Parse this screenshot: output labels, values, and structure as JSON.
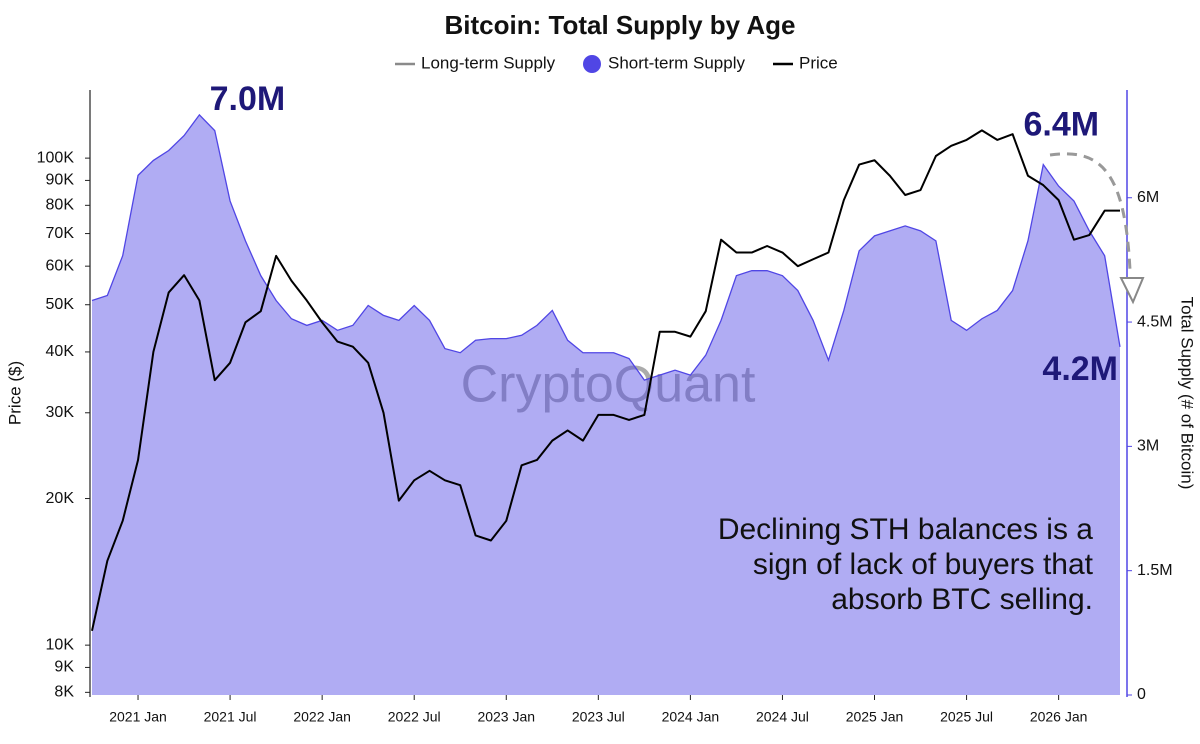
{
  "chart_data": {
    "type": "combo",
    "title": "Bitcoin: Total Supply by Age",
    "y_label": "Price ($)",
    "y2_label": "Total Supply (# of Bitcoin)",
    "watermark": "CryptoQuant",
    "x": [
      "2020-10",
      "2020-11",
      "2020-12",
      "2021-01",
      "2021-02",
      "2021-03",
      "2021-04",
      "2021-05",
      "2021-06",
      "2021-07",
      "2021-08",
      "2021-09",
      "2021-10",
      "2021-11",
      "2021-12",
      "2022-01",
      "2022-02",
      "2022-03",
      "2022-04",
      "2022-05",
      "2022-06",
      "2022-07",
      "2022-08",
      "2022-09",
      "2022-10",
      "2022-11",
      "2022-12",
      "2023-01",
      "2023-02",
      "2023-03",
      "2023-04",
      "2023-05",
      "2023-06",
      "2023-07",
      "2023-08",
      "2023-09",
      "2023-10",
      "2023-11",
      "2023-12",
      "2024-01",
      "2024-02",
      "2024-03",
      "2024-04",
      "2024-05",
      "2024-06",
      "2024-07",
      "2024-08",
      "2024-09",
      "2024-10",
      "2024-11",
      "2024-12",
      "2025-01",
      "2025-02",
      "2025-03",
      "2025-04",
      "2025-05",
      "2025-06",
      "2025-07",
      "2025-08",
      "2025-09",
      "2025-10",
      "2025-11",
      "2025-12",
      "2026-01",
      "2026-02",
      "2026-03",
      "2026-04",
      "2026-05"
    ],
    "xticks": [
      {
        "value": "2021-01",
        "label": "2021 Jan"
      },
      {
        "value": "2021-07",
        "label": "2021 Jul"
      },
      {
        "value": "2022-01",
        "label": "2022 Jan"
      },
      {
        "value": "2022-07",
        "label": "2022 Jul"
      },
      {
        "value": "2023-01",
        "label": "2023 Jan"
      },
      {
        "value": "2023-07",
        "label": "2023 Jul"
      },
      {
        "value": "2024-01",
        "label": "2024 Jan"
      },
      {
        "value": "2024-07",
        "label": "2024 Jul"
      },
      {
        "value": "2025-01",
        "label": "2025 Jan"
      },
      {
        "value": "2025-07",
        "label": "2025 Jul"
      },
      {
        "value": "2026-01",
        "label": "2026 Jan"
      }
    ],
    "log_y": true,
    "ylim": [
      7900,
      138000
    ],
    "yticks": [
      {
        "value": 8000,
        "label": "8K"
      },
      {
        "value": 9000,
        "label": "9K"
      },
      {
        "value": 10000,
        "label": "10K"
      },
      {
        "value": 20000,
        "label": "20K"
      },
      {
        "value": 30000,
        "label": "30K"
      },
      {
        "value": 40000,
        "label": "40K"
      },
      {
        "value": 50000,
        "label": "50K"
      },
      {
        "value": 60000,
        "label": "60K"
      },
      {
        "value": 70000,
        "label": "70K"
      },
      {
        "value": 80000,
        "label": "80K"
      },
      {
        "value": 90000,
        "label": "90K"
      },
      {
        "value": 100000,
        "label": "100K"
      }
    ],
    "y2lim": [
      0,
      7300000
    ],
    "y2ticks": [
      0,
      {
        "value": 1500000,
        "label": "1.5M"
      },
      {
        "value": 3000000,
        "label": "3M"
      },
      {
        "value": 4500000,
        "label": "4.5M"
      },
      {
        "value": 6000000,
        "label": "6M"
      }
    ],
    "series": [
      {
        "name": "Long-term Supply",
        "color": "#8a8a8a",
        "type": "legend_line"
      },
      {
        "name": "Short-term Supply",
        "color": "#5046e5",
        "type": "area",
        "axis": "y2",
        "values": [
          4760000,
          4820000,
          5300000,
          6270000,
          6450000,
          6570000,
          6750000,
          7000000,
          6810000,
          5960000,
          5480000,
          5060000,
          4760000,
          4540000,
          4460000,
          4520000,
          4400000,
          4460000,
          4700000,
          4580000,
          4520000,
          4700000,
          4520000,
          4180000,
          4130000,
          4280000,
          4300000,
          4300000,
          4340000,
          4460000,
          4640000,
          4280000,
          4130000,
          4130000,
          4130000,
          4060000,
          3800000,
          3860000,
          3920000,
          3860000,
          4100000,
          4520000,
          5060000,
          5120000,
          5120000,
          5060000,
          4880000,
          4520000,
          4040000,
          4640000,
          5360000,
          5540000,
          5600000,
          5660000,
          5600000,
          5480000,
          4520000,
          4400000,
          4540000,
          4640000,
          4880000,
          5480000,
          6400000,
          6140000,
          5960000,
          5600000,
          5300000,
          4200000
        ]
      },
      {
        "name": "Price",
        "color": "#000000",
        "type": "line",
        "values": [
          10700,
          14900,
          18000,
          24000,
          40000,
          53000,
          57500,
          51000,
          35000,
          38000,
          46000,
          48500,
          63000,
          56000,
          51000,
          46000,
          42000,
          41000,
          38000,
          30000,
          19800,
          21800,
          22800,
          21800,
          21300,
          16800,
          16400,
          18000,
          23400,
          24000,
          26300,
          27600,
          26300,
          29700,
          29700,
          29000,
          29700,
          44000,
          44000,
          43000,
          48500,
          68000,
          64000,
          64000,
          66000,
          64000,
          60000,
          62000,
          64000,
          82000,
          97000,
          99000,
          92000,
          84000,
          86000,
          101000,
          106000,
          109000,
          114000,
          109000,
          112000,
          92000,
          88000,
          82000,
          68000,
          69500,
          78000,
          78000
        ]
      }
    ],
    "annotations": [
      {
        "text": "7.0M",
        "x": "2021-05",
        "y": 7000000
      },
      {
        "text": "6.4M",
        "x": "2025-12",
        "y": 6400000
      },
      {
        "text": "4.2M",
        "x": "2026-05",
        "y": 4200000
      }
    ],
    "note_lines": [
      "Declining STH balances is a",
      "sign of lack of buyers that",
      "absorb BTC selling."
    ]
  }
}
